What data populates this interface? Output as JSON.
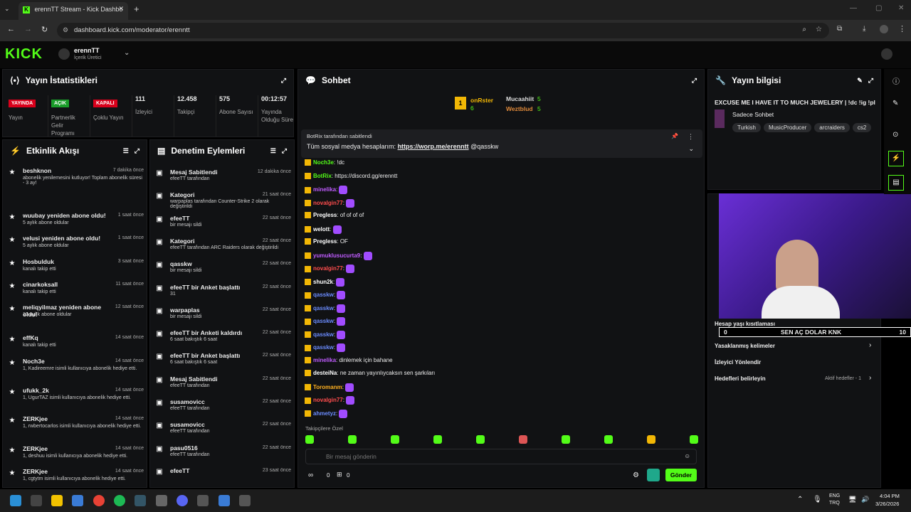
{
  "browser": {
    "tab_title": "erennTT Stream - Kick Dashbo",
    "url": "dashboard.kick.com/moderator/erenntt"
  },
  "app": {
    "logo": "KICK",
    "user": "erennTT",
    "role": "İçerik Üretici"
  },
  "stats": {
    "title": "Yayın İstatistikleri",
    "items": [
      {
        "badge": "YAYINDA",
        "label": "Yayın",
        "color": "#d9001b"
      },
      {
        "badge": "AÇIK",
        "label": "Partnerlik Gelir Programı",
        "color": "#1a9d2a"
      },
      {
        "badge": "KAPALI",
        "label": "Çoklu Yayın",
        "color": "#d9001b"
      },
      {
        "value": "111",
        "label": "İzleyici"
      },
      {
        "value": "12.458",
        "label": "Takipçi"
      },
      {
        "value": "575",
        "label": "Abone Sayısı"
      },
      {
        "value": "00:12:57",
        "label": "Yayında Olduğu Süre"
      }
    ]
  },
  "activity": {
    "title": "Etkinlik Akışı",
    "items": [
      {
        "name": "beshknon",
        "time": "7 dakika önce",
        "desc": "abonelik yenilemesini kutluyor! Toplam abonelik süresi - 3 ay!"
      },
      {
        "name": "wuubay yeniden abone oldu!",
        "time": "1 saat önce",
        "desc": "5 aylık abone oldular"
      },
      {
        "name": "velusi yeniden abone oldu!",
        "time": "1 saat önce",
        "desc": "5 aylık abone oldular"
      },
      {
        "name": "Hosbulduk",
        "time": "3 saat önce",
        "desc": "kanalı takip etti"
      },
      {
        "name": "cinarkoksall",
        "time": "11 saat önce",
        "desc": "kanalı takip etti"
      },
      {
        "name": "meliqyilmaz yeniden abone oldu!",
        "time": "12 saat önce",
        "desc": "10 aylık abone oldular"
      },
      {
        "name": "effKq",
        "time": "14 saat önce",
        "desc": "kanalı takip etti"
      },
      {
        "name": "Noch3e",
        "time": "14 saat önce",
        "desc": "1, Kadireemre isimli kullanıcıya abonelik hediye etti."
      },
      {
        "name": "ufukk_2k",
        "time": "14 saat önce",
        "desc": "1, UgurTAZ isimli kullanıcıya abonelik hediye etti."
      },
      {
        "name": "ZERKjee",
        "time": "14 saat önce",
        "desc": "1, rwbertocarlos isimli kullanıcıya abonelik hediye etti."
      },
      {
        "name": "ZERKjee",
        "time": "14 saat önce",
        "desc": "1, deshuu isimli kullanıcıya abonelik hediye etti."
      },
      {
        "name": "ZERKjee",
        "time": "14 saat önce",
        "desc": "1, cgtytm isimli kullanıcıya abonelik hediye etti."
      }
    ]
  },
  "mod": {
    "title": "Denetim Eylemleri",
    "items": [
      {
        "name": "Mesaj Sabitlendi",
        "time": "12 dakika önce",
        "desc": "efeeTT tarafından"
      },
      {
        "name": "Kategori",
        "time": "21 saat önce",
        "desc": "warpaplas tarafından Counter-Strike 2 olarak değiştirildi"
      },
      {
        "name": "efeeTT",
        "time": "22 saat önce",
        "desc": "bir mesajı sildi"
      },
      {
        "name": "Kategori",
        "time": "22 saat önce",
        "desc": "efeeTT tarafından ARC Raiders olarak değiştirildi"
      },
      {
        "name": "qasskw",
        "time": "22 saat önce",
        "desc": "bir mesajı sildi"
      },
      {
        "name": "efeeTT bir Anket başlattı",
        "time": "22 saat önce",
        "desc": "31"
      },
      {
        "name": "warpaplas",
        "time": "22 saat önce",
        "desc": "bir mesajı sildi"
      },
      {
        "name": "efeeTT bir Anketi kaldırdı",
        "time": "22 saat önce",
        "desc": "6 saat bakıştık 6 saat"
      },
      {
        "name": "efeeTT bir Anket başlattı",
        "time": "22 saat önce",
        "desc": "6 saat bakıştık 6 saat"
      },
      {
        "name": "Mesaj Sabitlendi",
        "time": "22 saat önce",
        "desc": "efeeTT tarafından"
      },
      {
        "name": "susamovicc",
        "time": "22 saat önce",
        "desc": "efeeTT tarafından"
      },
      {
        "name": "susamovicc",
        "time": "22 saat önce",
        "desc": "efeeTT tarafından"
      },
      {
        "name": "pasu0516",
        "time": "22 saat önce",
        "desc": "efeeTT tarafından"
      },
      {
        "name": "efeeTT",
        "time": "23 saat önce",
        "desc": ""
      }
    ]
  },
  "chat": {
    "title": "Sohbet",
    "top1": "onRster",
    "top1n": "6",
    "top2": "Mucaahiit",
    "top2n": "5",
    "top3": "Weztblud",
    "top3n": "5",
    "pinned_by": "BotRix tarafından sabitlendi",
    "pinned_text": "Tüm sosyal medya hesaplarım:",
    "pinned_link": "https://worp.me/erenntt",
    "pinned_tail": "@qasskw",
    "messages": [
      {
        "u": "Noch3e",
        "t": "!dc",
        "c": "#53fc18"
      },
      {
        "u": "BotRix",
        "t": "https://discord.gg/erenntt",
        "c": "#53fc18"
      },
      {
        "u": "minelika",
        "t": "",
        "c": "#c05cff"
      },
      {
        "u": "novalgin77",
        "t": "",
        "c": "#ff4d4d"
      },
      {
        "u": "Pregless",
        "t": "of of of of",
        "c": "#fff"
      },
      {
        "u": "welott",
        "t": "",
        "c": "#fff"
      },
      {
        "u": "Pregless",
        "t": "OF",
        "c": "#fff"
      },
      {
        "u": "yumuklusucurta9",
        "t": "",
        "c": "#c05cff"
      },
      {
        "u": "novalgin77",
        "t": "",
        "c": "#ff4d4d"
      },
      {
        "u": "shun2k",
        "t": "",
        "c": "#fff"
      },
      {
        "u": "qasskw",
        "t": "",
        "c": "#6b8cff"
      },
      {
        "u": "qasskw",
        "t": "",
        "c": "#6b8cff"
      },
      {
        "u": "qasskw",
        "t": "",
        "c": "#6b8cff"
      },
      {
        "u": "qasskw",
        "t": "",
        "c": "#6b8cff"
      },
      {
        "u": "qasskw",
        "t": "",
        "c": "#6b8cff"
      },
      {
        "u": "minelika",
        "t": "dinlemek için bahane",
        "c": "#c05cff"
      },
      {
        "u": "desteiNa",
        "t": "ne zaman yayınlıycaksın sen şarkıları",
        "c": "#fff"
      },
      {
        "u": "Toromanm",
        "t": "",
        "c": "#ffb020"
      },
      {
        "u": "novalgin77",
        "t": "",
        "c": "#ff4d4d"
      },
      {
        "u": "ahmetyz",
        "t": "",
        "c": "#6b8cff"
      }
    ],
    "followers": "Takipçilere Özel",
    "input_placeholder": "Bir mesaj gönderin",
    "send": "Gönder",
    "count1": "0",
    "count2": "0"
  },
  "info": {
    "title": "Yayın bilgisi",
    "stream_title": "EXCUSE ME I HAVE IT TO MUCH JEWELERY | !dc !ig !pl",
    "category": "Sadece Sohbet",
    "tags": [
      "Turkish",
      "MusicProducer",
      "arcraiders",
      "cs2"
    ],
    "age": "Hesap yaşı kısıtlaması",
    "banned": "Yasaklanmış kelimeler",
    "redirect": "İzleyici Yönlendir",
    "goals": "Hedefleri belirleyin",
    "goals_status": "Aktif hedefler - 1"
  },
  "overlay": {
    "text": "SEN AÇ DOLAR KNK",
    "left": "0",
    "right": "10"
  },
  "taskbar": {
    "lang1": "ENG",
    "lang2": "TRQ",
    "time": "4:04 PM",
    "date": "3/26/2026"
  }
}
